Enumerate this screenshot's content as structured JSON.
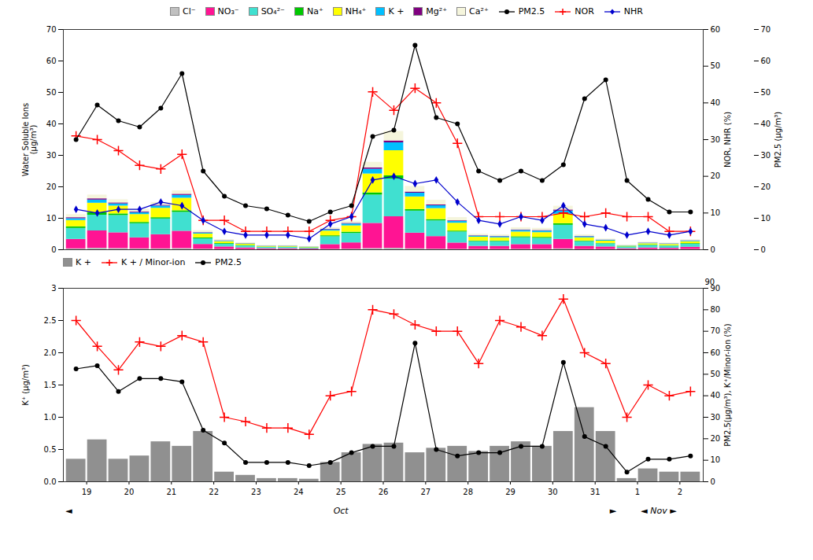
{
  "chart_data": [
    {
      "type": "bar",
      "stacked": true,
      "categories": [
        "19",
        null,
        "20",
        null,
        "21",
        null,
        "22",
        null,
        "23",
        null,
        "24",
        null,
        "25",
        null,
        "26",
        null,
        "27",
        null,
        "28",
        null,
        "29",
        null,
        "30",
        null,
        "31",
        null,
        "1",
        null,
        "2",
        null
      ],
      "ylabel": "Water Soluble Ions\n(μg/m³)",
      "y2label": "NOR, NHR (%)",
      "y3label": "PM2.5 (μg/m³)",
      "ylim": [
        0,
        70
      ],
      "yticks": [
        0,
        10,
        20,
        30,
        40,
        50,
        60,
        70
      ],
      "y2lim": [
        0,
        60
      ],
      "y2ticks": [
        0,
        10,
        20,
        30,
        40,
        50,
        60
      ],
      "y3lim": [
        0,
        70
      ],
      "y3ticks": [
        0,
        10,
        20,
        30,
        40,
        50,
        60,
        70
      ],
      "grid": false,
      "legend": "upper center",
      "tick_labels": "y",
      "series": [
        {
          "name": "Cl⁻",
          "type": "bar",
          "color": "#c0c0c0",
          "values": [
            0.3,
            0.5,
            0.4,
            0.3,
            0.3,
            0.4,
            0.2,
            0.1,
            0.1,
            0.05,
            0.05,
            0.05,
            0.15,
            0.2,
            0.4,
            0.5,
            0.3,
            0.2,
            0.15,
            0.1,
            0.1,
            0.15,
            0.15,
            0.3,
            0.1,
            0.1,
            0.05,
            0.08,
            0.08,
            0.1
          ]
        },
        {
          "name": "NO₃⁻",
          "type": "bar",
          "color": "#ff1493",
          "values": [
            3.0,
            5.5,
            5.0,
            3.5,
            4.5,
            5.5,
            1.5,
            0.8,
            0.5,
            0.3,
            0.3,
            0.2,
            1.5,
            2.0,
            8.0,
            10.0,
            5.0,
            4.0,
            2.0,
            1.0,
            1.0,
            1.5,
            1.5,
            3.0,
            1.0,
            0.8,
            0.3,
            0.5,
            0.4,
            0.7
          ]
        },
        {
          "name": "SO₄²⁻",
          "type": "bar",
          "color": "#40e0d0",
          "values": [
            3.5,
            5.0,
            5.5,
            4.5,
            5.0,
            6.0,
            1.8,
            0.9,
            0.6,
            0.4,
            0.4,
            0.3,
            2.5,
            3.0,
            9.0,
            12.0,
            7.0,
            5.0,
            3.5,
            1.5,
            1.5,
            2.2,
            2.0,
            4.5,
            1.5,
            1.0,
            0.5,
            0.8,
            0.7,
            1.0
          ]
        },
        {
          "name": "Na⁺",
          "type": "bar",
          "color": "#00c800",
          "values": [
            0.5,
            0.8,
            0.5,
            0.4,
            0.4,
            0.5,
            0.3,
            0.2,
            0.2,
            0.1,
            0.1,
            0.1,
            0.3,
            0.4,
            0.7,
            1.0,
            0.5,
            0.4,
            0.3,
            0.2,
            0.2,
            0.3,
            0.3,
            0.5,
            0.2,
            0.15,
            0.1,
            0.15,
            0.12,
            0.18
          ]
        },
        {
          "name": "NH₄⁺",
          "type": "bar",
          "color": "#ffff00",
          "values": [
            2.0,
            3.0,
            2.5,
            2.5,
            3.0,
            4.0,
            1.2,
            0.6,
            0.4,
            0.2,
            0.2,
            0.15,
            1.5,
            2.0,
            6.0,
            8.0,
            4.0,
            3.5,
            2.5,
            1.2,
            1.0,
            1.5,
            1.5,
            3.0,
            1.0,
            0.7,
            0.2,
            0.4,
            0.4,
            0.6
          ]
        },
        {
          "name": "K +",
          "type": "bar",
          "color": "#00bfff",
          "values": [
            0.6,
            1.0,
            0.7,
            0.6,
            0.7,
            0.9,
            0.35,
            0.18,
            0.12,
            0.09,
            0.09,
            0.07,
            0.4,
            0.6,
            1.5,
            2.5,
            1.2,
            0.9,
            0.6,
            0.35,
            0.35,
            0.5,
            0.5,
            1.0,
            0.35,
            0.25,
            0.12,
            0.18,
            0.16,
            0.22
          ]
        },
        {
          "name": "Mg²⁺",
          "type": "bar",
          "color": "#800080",
          "values": [
            0.3,
            0.4,
            0.3,
            0.25,
            0.25,
            0.35,
            0.12,
            0.1,
            0.06,
            0.05,
            0.05,
            0.04,
            0.15,
            0.2,
            0.4,
            0.6,
            0.35,
            0.25,
            0.18,
            0.12,
            0.12,
            0.18,
            0.18,
            0.35,
            0.12,
            0.1,
            0.05,
            0.07,
            0.07,
            0.09
          ]
        },
        {
          "name": "Ca²⁺",
          "type": "bar",
          "color": "#f5f5dc",
          "values": [
            1.0,
            1.2,
            1.0,
            0.8,
            0.9,
            1.1,
            0.6,
            0.35,
            0.25,
            0.18,
            0.18,
            0.12,
            0.5,
            0.7,
            1.8,
            3.0,
            1.8,
            1.5,
            1.0,
            0.5,
            0.5,
            0.7,
            0.7,
            1.2,
            0.5,
            0.35,
            0.18,
            0.25,
            0.22,
            0.32
          ]
        },
        {
          "name": "PM2.5",
          "type": "line",
          "axis": "y3",
          "color": "#000000",
          "marker": "circle",
          "values": [
            35,
            46,
            41,
            39,
            45,
            56,
            25,
            17,
            14,
            13,
            11,
            9,
            12,
            14,
            36,
            38,
            65,
            42,
            40,
            25,
            22,
            25,
            22,
            27,
            48,
            54,
            22,
            16,
            12,
            12
          ]
        },
        {
          "name": "NOR",
          "type": "line",
          "axis": "y2",
          "color": "#ff0000",
          "marker": "plus",
          "values": [
            31,
            30,
            27,
            23,
            22,
            26,
            8,
            8,
            5,
            5,
            5,
            5,
            8,
            9,
            43,
            38,
            44,
            40,
            29,
            9,
            9,
            9,
            9,
            10,
            9,
            10,
            9,
            9,
            5,
            5
          ]
        },
        {
          "name": "NHR",
          "type": "line",
          "axis": "y2",
          "color": "#0000cd",
          "marker": "diamond",
          "values": [
            11,
            10,
            11,
            11,
            13,
            12,
            8,
            5,
            4,
            4,
            4,
            3,
            7,
            9,
            19,
            20,
            18,
            19,
            13,
            8,
            7,
            9,
            8,
            12,
            7,
            6,
            4,
            5,
            4,
            5
          ]
        }
      ]
    },
    {
      "type": "bar",
      "categories": [
        "19",
        null,
        "20",
        null,
        "21",
        null,
        "22",
        null,
        "23",
        null,
        "24",
        null,
        "25",
        null,
        "26",
        null,
        "27",
        null,
        "28",
        null,
        "29",
        null,
        "30",
        null,
        "31",
        null,
        "1",
        null,
        "2",
        null
      ],
      "ylabel": "K⁺ (μg/m³)",
      "y2label": "PM2.5(μg/m³), K⁺/Minor-ion (%)",
      "ylim": [
        0,
        3
      ],
      "yticks": [
        {
          "value": 0,
          "label": "0.0"
        },
        {
          "value": 0.5,
          "label": "0.5"
        },
        {
          "value": 1,
          "label": "1.0"
        },
        {
          "value": 1.5,
          "label": "1.5"
        },
        {
          "value": 2,
          "label": "2.0"
        },
        {
          "value": 2.5,
          "label": "2.5"
        },
        3
      ],
      "y2lim": [
        0,
        90
      ],
      "y2ticks": [
        0,
        10,
        20,
        30,
        40,
        50,
        60,
        70,
        80,
        90
      ],
      "grid": false,
      "legend": "upper left",
      "annotations": [
        "90",
        "◄",
        "Oct",
        "►",
        "◄ Nov ►"
      ],
      "series": [
        {
          "name": "K +",
          "type": "bar",
          "color": "#909090",
          "values": [
            0.35,
            0.65,
            0.35,
            0.4,
            0.62,
            0.55,
            0.78,
            0.15,
            0.1,
            0.05,
            0.05,
            0.04,
            0.3,
            0.45,
            0.58,
            0.6,
            0.45,
            0.52,
            0.55,
            0.47,
            0.55,
            0.62,
            0.55,
            0.78,
            1.15,
            0.78,
            0.05,
            0.2,
            0.15,
            0.15
          ]
        },
        {
          "name": "K + / Minor-ion",
          "type": "line",
          "axis": "y2",
          "color": "#ff0000",
          "marker": "plus",
          "values": [
            75,
            63,
            52,
            65,
            63,
            68,
            65,
            30,
            28,
            25,
            25,
            22,
            40,
            42,
            80,
            78,
            73,
            70,
            70,
            55,
            75,
            72,
            68,
            85,
            60,
            55,
            30,
            45,
            40,
            42
          ]
        },
        {
          "name": "PM2.5",
          "type": "line",
          "color": "#000000",
          "marker": "circle",
          "values": [
            1.75,
            1.8,
            1.4,
            1.6,
            1.6,
            1.55,
            0.8,
            0.6,
            0.3,
            0.3,
            0.3,
            0.25,
            0.3,
            0.45,
            0.55,
            0.55,
            2.15,
            0.5,
            0.4,
            0.45,
            0.45,
            0.55,
            0.55,
            1.85,
            0.7,
            0.55,
            0.15,
            0.35,
            0.35,
            0.4
          ]
        }
      ]
    }
  ]
}
